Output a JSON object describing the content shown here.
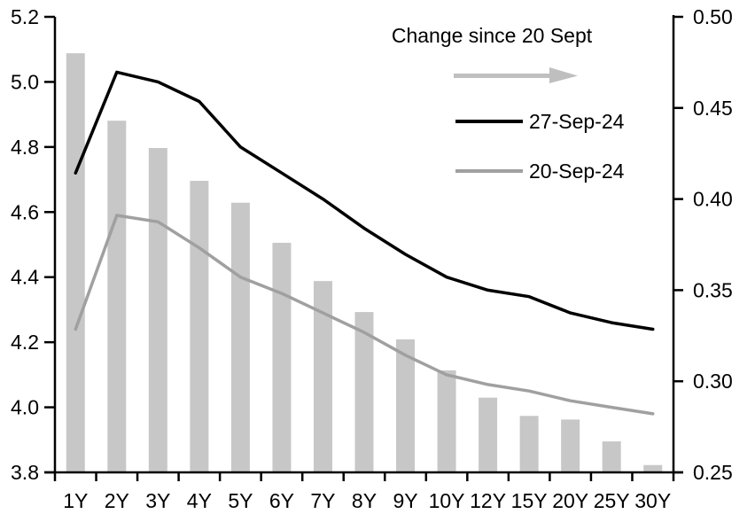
{
  "legend": {
    "change_label": "Change since 20 Sept",
    "series1_label": "27-Sep-24",
    "series2_label": "20-Sep-24"
  },
  "colors": {
    "bar": "#c7c7c7",
    "line_current": "#000000",
    "line_previous": "#a0a0a0",
    "arrow": "#bfbfbf",
    "axis": "#000000"
  },
  "chart_data": {
    "type": "bar+line",
    "categories": [
      "1Y",
      "2Y",
      "3Y",
      "4Y",
      "5Y",
      "6Y",
      "7Y",
      "8Y",
      "9Y",
      "10Y",
      "12Y",
      "15Y",
      "20Y",
      "25Y",
      "30Y"
    ],
    "series": [
      {
        "name": "Change since 20 Sept",
        "type": "bar",
        "axis": "right",
        "values": [
          0.48,
          0.443,
          0.428,
          0.41,
          0.398,
          0.376,
          0.355,
          0.338,
          0.323,
          0.306,
          0.291,
          0.281,
          0.279,
          0.267,
          0.254
        ]
      },
      {
        "name": "20-Sep-24",
        "type": "line",
        "axis": "left",
        "values": [
          4.24,
          4.59,
          4.57,
          4.49,
          4.4,
          4.35,
          4.29,
          4.23,
          4.16,
          4.1,
          4.07,
          4.05,
          4.02,
          4.0,
          3.98
        ]
      },
      {
        "name": "27-Sep-24",
        "type": "line",
        "axis": "left",
        "values": [
          4.72,
          5.03,
          5.0,
          4.94,
          4.8,
          4.72,
          4.64,
          4.55,
          4.47,
          4.4,
          4.36,
          4.34,
          4.29,
          4.26,
          4.24
        ]
      }
    ],
    "left_axis": {
      "min": 3.8,
      "max": 5.2,
      "tick_labels": [
        "5.2",
        "5.0",
        "4.8",
        "4.6",
        "4.4",
        "4.2",
        "4.0",
        "3.8"
      ],
      "tick_values": [
        5.2,
        5.0,
        4.8,
        4.6,
        4.4,
        4.2,
        4.0,
        3.8
      ]
    },
    "right_axis": {
      "min": 0.25,
      "max": 0.5,
      "tick_labels": [
        "0.50",
        "0.45",
        "0.40",
        "0.35",
        "0.30",
        "0.25"
      ],
      "tick_values": [
        0.5,
        0.45,
        0.4,
        0.35,
        0.3,
        0.25
      ]
    },
    "grid": false,
    "legend_position": "top-right-inside"
  }
}
